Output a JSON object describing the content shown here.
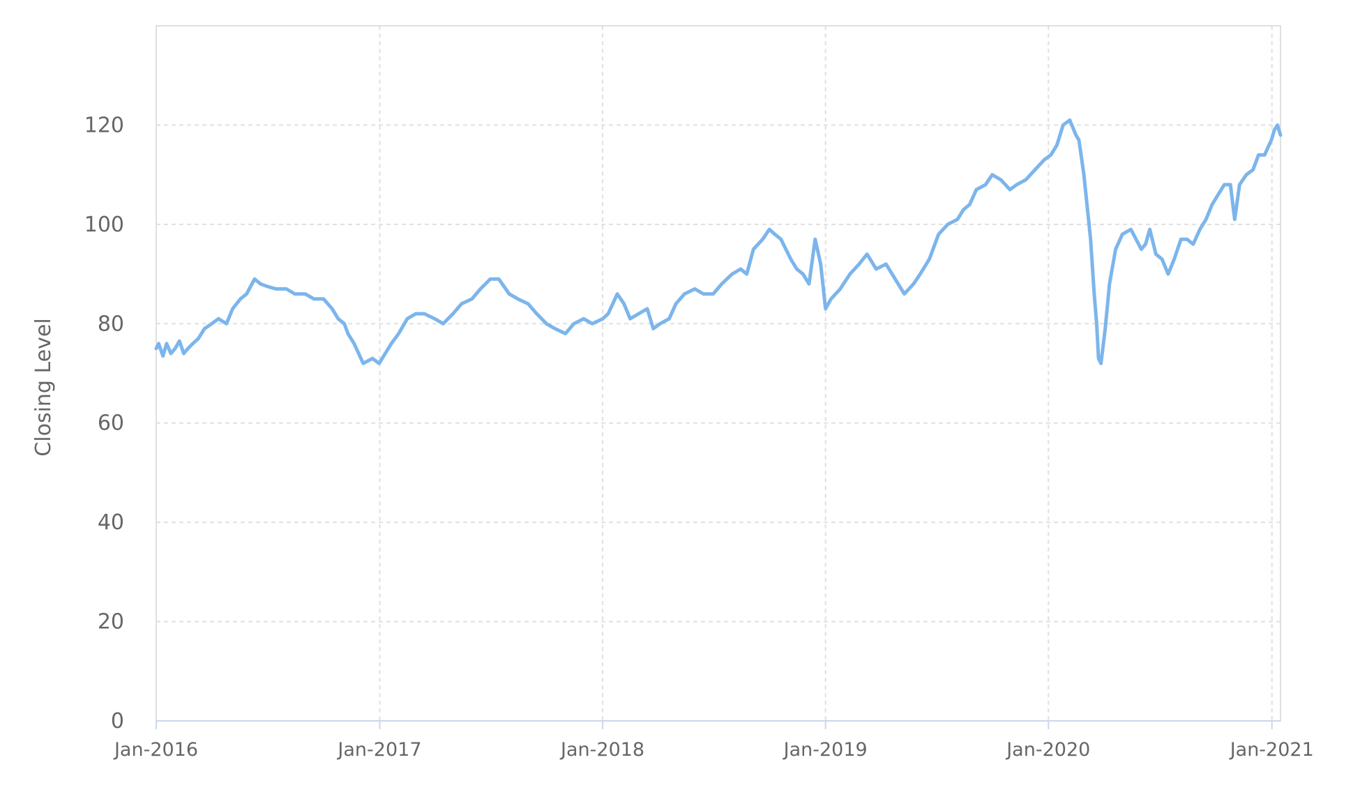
{
  "chart_data": {
    "type": "line",
    "title": "",
    "xlabel": "",
    "ylabel": "Closing Level",
    "x_axis_type": "date",
    "xlim": [
      "2016-01-01",
      "2021-01-15"
    ],
    "ylim": [
      0,
      140
    ],
    "y_ticks": [
      0,
      20,
      40,
      60,
      80,
      100,
      120
    ],
    "x_ticks": [
      {
        "date": "2016-01-01",
        "label": "Jan-2016"
      },
      {
        "date": "2017-01-01",
        "label": "Jan-2017"
      },
      {
        "date": "2018-01-01",
        "label": "Jan-2018"
      },
      {
        "date": "2019-01-01",
        "label": "Jan-2019"
      },
      {
        "date": "2020-01-01",
        "label": "Jan-2020"
      },
      {
        "date": "2021-01-01",
        "label": "Jan-2021"
      }
    ],
    "grid": true,
    "legend": "none",
    "line_color": "#7cb5ec",
    "grid_color": "#e0e0e0",
    "axis_color": "#ccd6eb",
    "series": [
      {
        "x": [
          "2016-01-01",
          "2016-01-05",
          "2016-01-12",
          "2016-01-18",
          "2016-01-25",
          "2016-02-01",
          "2016-02-08",
          "2016-02-15",
          "2016-02-22",
          "2016-03-01",
          "2016-03-10",
          "2016-03-20",
          "2016-04-01",
          "2016-04-12",
          "2016-04-25",
          "2016-05-05",
          "2016-05-18",
          "2016-05-28",
          "2016-06-10",
          "2016-06-20",
          "2016-07-01",
          "2016-07-15",
          "2016-08-01",
          "2016-08-15",
          "2016-09-01",
          "2016-09-15",
          "2016-10-01",
          "2016-10-15",
          "2016-10-25",
          "2016-11-04",
          "2016-11-10",
          "2016-11-20",
          "2016-12-05",
          "2016-12-20",
          "2016-12-31",
          "2017-01-10",
          "2017-01-20",
          "2017-02-01",
          "2017-02-15",
          "2017-03-01",
          "2017-03-15",
          "2017-04-01",
          "2017-04-15",
          "2017-05-01",
          "2017-05-15",
          "2017-06-01",
          "2017-06-15",
          "2017-07-01",
          "2017-07-15",
          "2017-08-01",
          "2017-08-15",
          "2017-09-01",
          "2017-09-15",
          "2017-10-01",
          "2017-10-15",
          "2017-11-01",
          "2017-11-15",
          "2017-12-01",
          "2017-12-15",
          "2018-01-01",
          "2018-01-10",
          "2018-01-25",
          "2018-02-05",
          "2018-02-15",
          "2018-03-01",
          "2018-03-15",
          "2018-03-25",
          "2018-04-05",
          "2018-04-20",
          "2018-05-01",
          "2018-05-15",
          "2018-06-01",
          "2018-06-15",
          "2018-07-01",
          "2018-07-15",
          "2018-08-01",
          "2018-08-15",
          "2018-08-25",
          "2018-09-05",
          "2018-09-20",
          "2018-10-01",
          "2018-10-10",
          "2018-10-20",
          "2018-10-28",
          "2018-11-05",
          "2018-11-15",
          "2018-11-25",
          "2018-12-05",
          "2018-12-15",
          "2018-12-24",
          "2019-01-01",
          "2019-01-10",
          "2019-01-25",
          "2019-02-10",
          "2019-02-25",
          "2019-03-10",
          "2019-03-25",
          "2019-04-10",
          "2019-04-25",
          "2019-05-10",
          "2019-05-25",
          "2019-06-05",
          "2019-06-20",
          "2019-07-05",
          "2019-07-20",
          "2019-08-05",
          "2019-08-15",
          "2019-08-25",
          "2019-09-05",
          "2019-09-20",
          "2019-10-01",
          "2019-10-15",
          "2019-10-30",
          "2019-11-10",
          "2019-11-25",
          "2019-12-10",
          "2019-12-25",
          "2020-01-05",
          "2020-01-15",
          "2020-01-25",
          "2020-02-05",
          "2020-02-15",
          "2020-02-20",
          "2020-02-28",
          "2020-03-05",
          "2020-03-10",
          "2020-03-16",
          "2020-03-20",
          "2020-03-23",
          "2020-03-27",
          "2020-04-03",
          "2020-04-10",
          "2020-04-20",
          "2020-05-01",
          "2020-05-15",
          "2020-06-01",
          "2020-06-08",
          "2020-06-15",
          "2020-06-25",
          "2020-07-05",
          "2020-07-15",
          "2020-07-25",
          "2020-08-05",
          "2020-08-15",
          "2020-08-25",
          "2020-09-05",
          "2020-09-15",
          "2020-09-25",
          "2020-10-05",
          "2020-10-15",
          "2020-10-25",
          "2020-11-01",
          "2020-11-09",
          "2020-11-20",
          "2020-12-01",
          "2020-12-10",
          "2020-12-20",
          "2020-12-31",
          "2021-01-05",
          "2021-01-10",
          "2021-01-15"
        ],
        "values": [
          75,
          76,
          73.5,
          76,
          74,
          75,
          76.5,
          74,
          75,
          76,
          77,
          79,
          80,
          81,
          80,
          83,
          85,
          86,
          89,
          88,
          87.5,
          87,
          87,
          86,
          86,
          85,
          85,
          83,
          81,
          80,
          78,
          76,
          72,
          73,
          72,
          74,
          76,
          78,
          81,
          82,
          82,
          81,
          80,
          82,
          84,
          85,
          87,
          89,
          89,
          86,
          85,
          84,
          82,
          80,
          79,
          78,
          80,
          81,
          80,
          81,
          82,
          86,
          84,
          81,
          82,
          83,
          79,
          80,
          81,
          84,
          86,
          87,
          86,
          86,
          88,
          90,
          91,
          90,
          95,
          97,
          99,
          98,
          97,
          95,
          93,
          91,
          90,
          88,
          97,
          92,
          83,
          85,
          87,
          90,
          92,
          94,
          91,
          92,
          89,
          86,
          88,
          90,
          93,
          98,
          100,
          101,
          103,
          104,
          107,
          108,
          110,
          109,
          107,
          108,
          109,
          111,
          113,
          114,
          116,
          120,
          121,
          118,
          117,
          110,
          103,
          97,
          86,
          80,
          73,
          72,
          79,
          88,
          95,
          98,
          99,
          95,
          96,
          99,
          94,
          93,
          90,
          93,
          97,
          97,
          96,
          99,
          101,
          104,
          106,
          108,
          108,
          101,
          108,
          110,
          111,
          114,
          114,
          117,
          119,
          120,
          118
        ]
      }
    ]
  }
}
